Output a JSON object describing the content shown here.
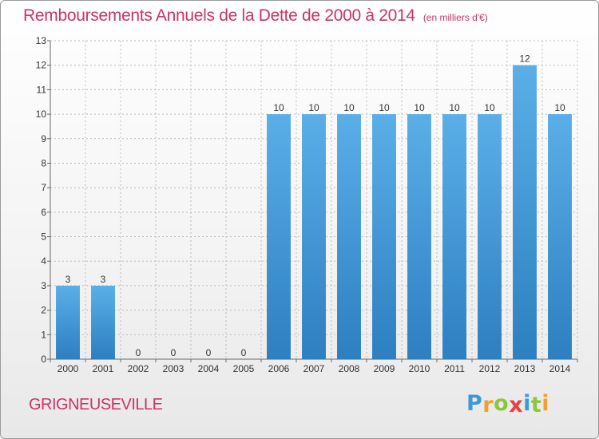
{
  "header": {
    "title": "Remboursements Annuels de la Dette de 2000 à 2014",
    "unit": "(en milliers d'€)"
  },
  "footer": {
    "commune": "GRIGNEUSEVILLE",
    "logo_letters": [
      "P",
      "r",
      "o",
      "x",
      "i",
      "t",
      "i"
    ],
    "logo_colors": [
      "#3a9ad9",
      "#f0a030",
      "#8cc63f",
      "#e84040",
      "#3a9ad9",
      "#8cc63f",
      "#f0a030"
    ]
  },
  "chart_data": {
    "type": "bar",
    "title": "Remboursements Annuels de la Dette de 2000 à 2014",
    "ylabel": "",
    "xlabel": "",
    "categories": [
      "2000",
      "2001",
      "2002",
      "2003",
      "2004",
      "2005",
      "2006",
      "2007",
      "2008",
      "2009",
      "2010",
      "2011",
      "2012",
      "2013",
      "2014"
    ],
    "values": [
      3,
      3,
      0,
      0,
      0,
      0,
      10,
      10,
      10,
      10,
      10,
      10,
      10,
      12,
      10
    ],
    "ylim": [
      0,
      13
    ],
    "yticks": [
      0,
      1,
      2,
      3,
      4,
      5,
      6,
      7,
      8,
      9,
      10,
      11,
      12,
      13
    ],
    "grid": true,
    "colors": {
      "bar_light": "#5aafe8",
      "bar_dark": "#2d7fc0",
      "grid": "#bbbbbb",
      "axis": "#666666"
    }
  }
}
